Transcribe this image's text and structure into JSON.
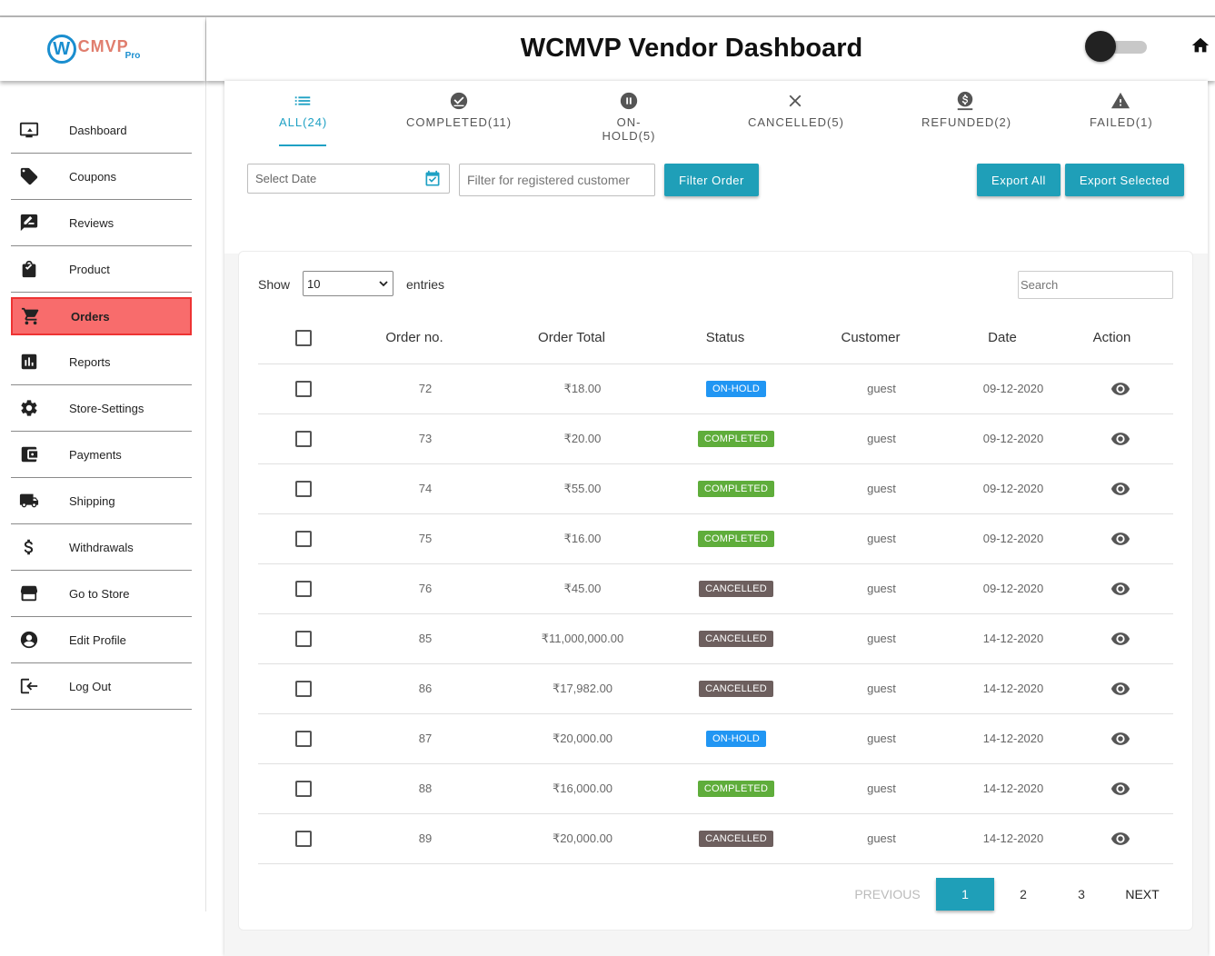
{
  "app": {
    "title": "WCMVP Vendor Dashboard"
  },
  "logo": {
    "mark": "W",
    "text": "CMVP",
    "sub": "Pro"
  },
  "colors": {
    "accent": "#1f9fb8",
    "active_nav": "#f86c6c",
    "onhold": "#2196f3",
    "completed": "#5fad3b",
    "cancelled": "#6d5f5e"
  },
  "sidebar": {
    "items": [
      {
        "label": "Dashboard",
        "icon": "monitor-icon"
      },
      {
        "label": "Coupons",
        "icon": "tag-icon"
      },
      {
        "label": "Reviews",
        "icon": "review-icon"
      },
      {
        "label": "Product",
        "icon": "bag-icon"
      },
      {
        "label": "Orders",
        "icon": "cart-icon",
        "active": true
      },
      {
        "label": "Reports",
        "icon": "chart-icon"
      },
      {
        "label": "Store-Settings",
        "icon": "gear-icon"
      },
      {
        "label": "Payments",
        "icon": "wallet-icon"
      },
      {
        "label": "Shipping",
        "icon": "truck-icon"
      },
      {
        "label": "Withdrawals",
        "icon": "dollar-icon"
      },
      {
        "label": "Go to Store",
        "icon": "store-icon"
      },
      {
        "label": "Edit Profile",
        "icon": "user-icon"
      },
      {
        "label": "Log Out",
        "icon": "logout-icon"
      }
    ]
  },
  "tabs": [
    {
      "label": "ALL(24)",
      "icon": "list-icon",
      "active": true
    },
    {
      "label": "COMPLETED(11)",
      "icon": "check-circle-icon"
    },
    {
      "label": "ON-HOLD(5)",
      "icon": "pause-circle-icon"
    },
    {
      "label": "CANCELLED(5)",
      "icon": "close-icon"
    },
    {
      "label": "REFUNDED(2)",
      "icon": "refund-icon"
    },
    {
      "label": "FAILED(1)",
      "icon": "warning-icon"
    }
  ],
  "filters": {
    "date_placeholder": "Select Date",
    "customer_placeholder": "Filter for registered customer",
    "filter_button": "Filter Order",
    "export_all": "Export All",
    "export_selected": "Export Selected"
  },
  "table": {
    "show_label": "Show",
    "entries_value": "10",
    "entries_label": "entries",
    "search_placeholder": "Search",
    "headers": [
      "Order no.",
      "Order Total",
      "Status",
      "Customer",
      "Date",
      "Action"
    ],
    "rows": [
      {
        "order": "72",
        "total": "₹18.00",
        "status": "ON-HOLD",
        "customer": "guest",
        "date": "09-12-2020"
      },
      {
        "order": "73",
        "total": "₹20.00",
        "status": "COMPLETED",
        "customer": "guest",
        "date": "09-12-2020"
      },
      {
        "order": "74",
        "total": "₹55.00",
        "status": "COMPLETED",
        "customer": "guest",
        "date": "09-12-2020"
      },
      {
        "order": "75",
        "total": "₹16.00",
        "status": "COMPLETED",
        "customer": "guest",
        "date": "09-12-2020"
      },
      {
        "order": "76",
        "total": "₹45.00",
        "status": "CANCELLED",
        "customer": "guest",
        "date": "09-12-2020"
      },
      {
        "order": "85",
        "total": "₹11,000,000.00",
        "status": "CANCELLED",
        "customer": "guest",
        "date": "14-12-2020"
      },
      {
        "order": "86",
        "total": "₹17,982.00",
        "status": "CANCELLED",
        "customer": "guest",
        "date": "14-12-2020"
      },
      {
        "order": "87",
        "total": "₹20,000.00",
        "status": "ON-HOLD",
        "customer": "guest",
        "date": "14-12-2020"
      },
      {
        "order": "88",
        "total": "₹16,000.00",
        "status": "COMPLETED",
        "customer": "guest",
        "date": "14-12-2020"
      },
      {
        "order": "89",
        "total": "₹20,000.00",
        "status": "CANCELLED",
        "customer": "guest",
        "date": "14-12-2020"
      }
    ]
  },
  "pagination": {
    "prev": "PREVIOUS",
    "pages": [
      "1",
      "2",
      "3"
    ],
    "current": "1",
    "next": "NEXT"
  }
}
